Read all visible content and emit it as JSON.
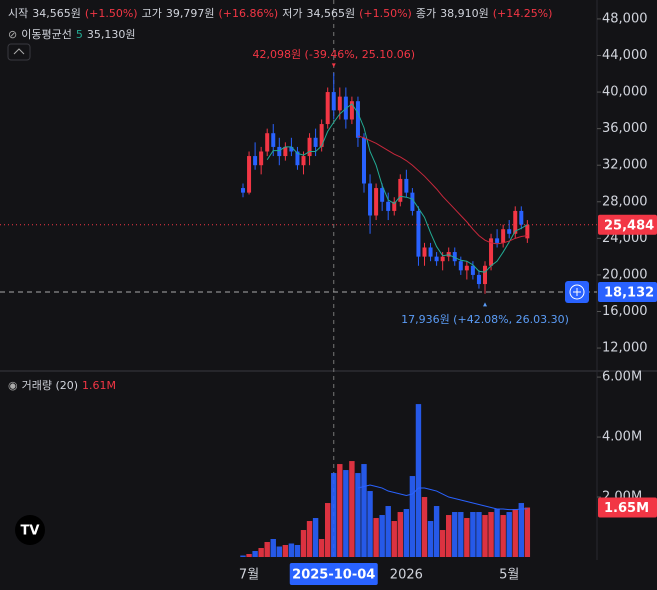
{
  "chart_data": [
    {
      "type": "candlestick",
      "header": [
        {
          "label": "시작",
          "value": "34,565원",
          "change": "(+1.50%)"
        },
        {
          "label": "고가",
          "value": "39,797원",
          "change": "(+16.86%)"
        },
        {
          "label": "저가",
          "value": "34,565원",
          "change": "(+1.50%)"
        },
        {
          "label": "종가",
          "value": "38,910원",
          "change": "(+14.25%)"
        }
      ],
      "indicator": {
        "name": "이동평균선",
        "param": "5",
        "value": "35,130원"
      },
      "categories": [
        null,
        "7월",
        null,
        null,
        null,
        null,
        null,
        null,
        null,
        null,
        null,
        null,
        null,
        null,
        null,
        "2025-10-04",
        null,
        null,
        null,
        null,
        null,
        null,
        null,
        null,
        null,
        null,
        null,
        "2026",
        null,
        null,
        null,
        null,
        null,
        null,
        null,
        null,
        null,
        null,
        null,
        null,
        null,
        null,
        null,
        null,
        "5월",
        null,
        null,
        null
      ],
      "crosshair_x": "2025-10-04",
      "open": [
        29500,
        29000,
        33000,
        32000,
        33500,
        35500,
        34000,
        33000,
        34000,
        33500,
        32000,
        33000,
        35000,
        34000,
        36500,
        40000,
        38000,
        39500,
        37000,
        39000,
        35000,
        30000,
        26500,
        29500,
        28000,
        27000,
        28000,
        30500,
        29000,
        27000,
        22000,
        23000,
        22000,
        21500,
        22000,
        22500,
        21500,
        20500,
        21000,
        20000,
        19000,
        21000,
        24000,
        23500,
        25000,
        24500,
        27000,
        24000
      ],
      "high": [
        30000,
        33500,
        34500,
        34000,
        36000,
        36500,
        35000,
        34500,
        35000,
        34000,
        33500,
        35500,
        36000,
        37000,
        40500,
        42098,
        40500,
        40500,
        39500,
        39500,
        35500,
        31000,
        30000,
        30000,
        29000,
        28500,
        31000,
        31500,
        29500,
        27500,
        23500,
        23500,
        22500,
        22500,
        23000,
        23000,
        22000,
        21500,
        21500,
        20500,
        21500,
        24500,
        25000,
        25500,
        26000,
        27500,
        27500,
        26000
      ],
      "low": [
        28500,
        28800,
        31500,
        31000,
        33000,
        33000,
        32000,
        32500,
        33000,
        31500,
        31000,
        32000,
        33000,
        33500,
        36000,
        37000,
        37000,
        36000,
        36500,
        34000,
        29000,
        24500,
        26000,
        27000,
        26000,
        26500,
        27500,
        28500,
        26500,
        21000,
        21000,
        21500,
        21000,
        20500,
        21500,
        21000,
        20000,
        19500,
        19500,
        18500,
        17936,
        20500,
        23000,
        23000,
        24000,
        24000,
        25000,
        23500
      ],
      "close": [
        29000,
        33000,
        32000,
        33500,
        35500,
        34000,
        33000,
        34000,
        33500,
        32000,
        33000,
        35000,
        34000,
        36500,
        40000,
        38000,
        39500,
        37000,
        39000,
        35000,
        30000,
        26500,
        29500,
        28000,
        27000,
        28000,
        30500,
        29000,
        27000,
        22000,
        23000,
        22000,
        21500,
        22000,
        22500,
        21500,
        20500,
        21000,
        20000,
        19000,
        21000,
        24000,
        23500,
        25000,
        24500,
        27000,
        25500,
        25484
      ],
      "up_color": "#f23645",
      "down_color": "#2962ff",
      "ma_lines": [
        {
          "color": "#22ab94",
          "values": [
            null,
            null,
            null,
            null,
            32600,
            33600,
            33600,
            34000,
            34000,
            33300,
            33100,
            33500,
            33500,
            34100,
            35700,
            36700,
            37600,
            38200,
            38700,
            37700,
            36100,
            33500,
            32000,
            29800,
            28200,
            27800,
            28600,
            28500,
            28300,
            27300,
            26300,
            24600,
            23100,
            22100,
            22200,
            21900,
            21600,
            21500,
            21100,
            20400,
            20300,
            21000,
            21500,
            22500,
            23600,
            24800,
            25100,
            25500
          ]
        },
        {
          "color": "#c8283c",
          "values": [
            null,
            null,
            null,
            null,
            null,
            null,
            null,
            null,
            null,
            null,
            null,
            null,
            null,
            null,
            null,
            null,
            null,
            null,
            null,
            35200,
            35000,
            34700,
            34400,
            34000,
            33600,
            33200,
            32900,
            32500,
            32000,
            31400,
            30800,
            30100,
            29400,
            28600,
            27900,
            27200,
            26500,
            25800,
            25000,
            24300,
            23800,
            23500,
            23400,
            23500,
            23700,
            24000,
            24200,
            24300
          ]
        }
      ],
      "annotations": [
        {
          "text": "42,098원 (-39.46%, 25.10.06)",
          "value": 42098,
          "color": "#f23645",
          "position": "above"
        },
        {
          "text": "17,936원 (+42.08%, 26.03.30)",
          "value": 17936,
          "color": "#5b9cf6",
          "position": "below"
        }
      ],
      "last_price": {
        "value": 25484,
        "label": "25,484",
        "color": "#f23645"
      },
      "crosshair_price": {
        "value": 18132,
        "label": "18,132",
        "color": "#2962ff"
      },
      "ylim": [
        9600,
        50070
      ],
      "yticks": [
        {
          "value": 12000,
          "label": "12,000"
        },
        {
          "value": 16000,
          "label": "16,000"
        },
        {
          "value": 20000,
          "label": "20,000"
        },
        {
          "value": 24000,
          "label": "24,000"
        },
        {
          "value": 28000,
          "label": "28,000"
        },
        {
          "value": 32000,
          "label": "32,000"
        },
        {
          "value": 36000,
          "label": "36,000"
        },
        {
          "value": 40000,
          "label": "40,000"
        },
        {
          "value": 44000,
          "label": "44,000"
        },
        {
          "value": 48000,
          "label": "48,000"
        }
      ]
    },
    {
      "type": "bar",
      "legend_name": "거래량 (20)",
      "legend_value": "1.61M",
      "values": [
        0.05,
        0.1,
        0.2,
        0.3,
        0.5,
        0.6,
        0.35,
        0.4,
        0.45,
        0.4,
        0.9,
        1.2,
        1.3,
        0.6,
        1.8,
        2.8,
        3.1,
        2.9,
        3.2,
        2.8,
        3.1,
        2.2,
        1.3,
        1.4,
        1.7,
        1.2,
        1.5,
        1.6,
        2.7,
        5.1,
        2.0,
        1.2,
        1.7,
        0.9,
        1.4,
        1.5,
        1.5,
        1.3,
        1.5,
        1.5,
        1.4,
        1.5,
        1.6,
        1.4,
        1.5,
        1.6,
        1.8,
        1.65
      ],
      "ma_color": "#2962ff",
      "ma_values": [
        null,
        null,
        null,
        null,
        null,
        null,
        null,
        null,
        null,
        null,
        null,
        null,
        null,
        null,
        null,
        null,
        null,
        null,
        null,
        2.3,
        2.35,
        2.4,
        2.35,
        2.3,
        2.2,
        2.15,
        2.1,
        2.05,
        2.1,
        2.3,
        2.3,
        2.25,
        2.2,
        2.1,
        2.0,
        1.95,
        1.9,
        1.85,
        1.8,
        1.75,
        1.7,
        1.65,
        1.6,
        1.6,
        1.58,
        1.58,
        1.6,
        1.61
      ],
      "last_volume": {
        "value": 1.65,
        "label": "1.65M",
        "color": "#f23645"
      },
      "ylim": [
        0,
        6.17
      ],
      "yticks": [
        {
          "value": 2,
          "label": "2.00M"
        },
        {
          "value": 4,
          "label": "4.00M"
        },
        {
          "value": 6,
          "label": "6.00M"
        }
      ]
    }
  ]
}
